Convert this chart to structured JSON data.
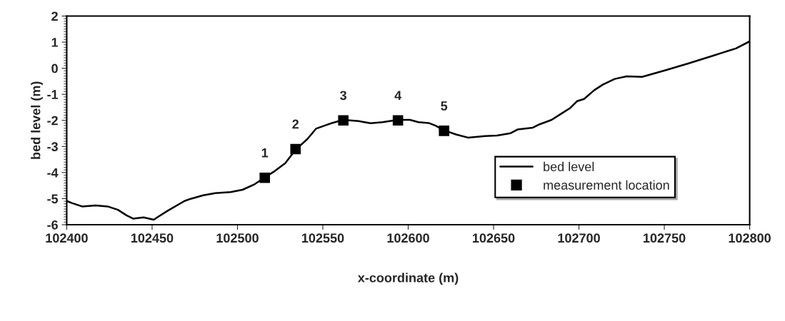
{
  "chart_data": {
    "type": "line",
    "xlabel": "x-coordinate (m)",
    "ylabel": "bed level (m)",
    "xlim": [
      102400,
      102800
    ],
    "xticks": [
      102400,
      102450,
      102500,
      102550,
      102600,
      102650,
      102700,
      102750,
      102800
    ],
    "ylim": [
      -6,
      2
    ],
    "yticks": [
      -6,
      -5,
      -4,
      -3,
      -2,
      -1,
      0,
      1,
      2
    ],
    "grid": false,
    "legend": "bottom right",
    "series": [
      {
        "name": "bed level",
        "color": "#000000",
        "line_style": "solid",
        "marker": "none",
        "x": [
          102400,
          102403,
          102409,
          102417,
          102424,
          102430,
          102435,
          102439,
          102445,
          102451,
          102453,
          102459,
          102469,
          102473,
          102480,
          102487,
          102496,
          102503,
          102510,
          102516,
          102521,
          102528,
          102534,
          102541,
          102546,
          102551,
          102555,
          102562,
          102571,
          102578,
          102585,
          102594,
          102601,
          102606,
          102612,
          102616,
          102621,
          102628,
          102635,
          102645,
          102652,
          102660,
          102664,
          102673,
          102677,
          102684,
          102689,
          102695,
          102699,
          102703,
          102709,
          102714,
          102721,
          102728,
          102737,
          102751,
          102764,
          102778,
          102792,
          102800
        ],
        "values": [
          -5.09,
          -5.17,
          -5.3,
          -5.26,
          -5.3,
          -5.43,
          -5.64,
          -5.77,
          -5.72,
          -5.81,
          -5.72,
          -5.47,
          -5.09,
          -5.0,
          -4.87,
          -4.79,
          -4.75,
          -4.66,
          -4.45,
          -4.19,
          -3.98,
          -3.64,
          -3.13,
          -2.71,
          -2.32,
          -2.2,
          -2.11,
          -1.98,
          -2.03,
          -2.11,
          -2.07,
          -1.98,
          -1.98,
          -2.07,
          -2.1,
          -2.2,
          -2.38,
          -2.54,
          -2.66,
          -2.6,
          -2.58,
          -2.49,
          -2.35,
          -2.28,
          -2.15,
          -1.98,
          -1.77,
          -1.52,
          -1.26,
          -1.18,
          -0.84,
          -0.63,
          -0.41,
          -0.31,
          -0.33,
          -0.07,
          0.18,
          0.47,
          0.76,
          1.03
        ]
      },
      {
        "name": "measurement location",
        "type": "scatter",
        "color": "#000000",
        "marker": "square",
        "x": [
          102516,
          102534,
          102562,
          102594,
          102621
        ],
        "values": [
          -4.2,
          -3.1,
          -2.0,
          -2.0,
          -2.4
        ]
      }
    ],
    "annotations": [
      {
        "text": "1",
        "x": 102516,
        "y": -4.2
      },
      {
        "text": "2",
        "x": 102534,
        "y": -3.1
      },
      {
        "text": "3",
        "x": 102562,
        "y": -2.0
      },
      {
        "text": "4",
        "x": 102594,
        "y": -2.0
      },
      {
        "text": "5",
        "x": 102621,
        "y": -2.4
      }
    ]
  }
}
